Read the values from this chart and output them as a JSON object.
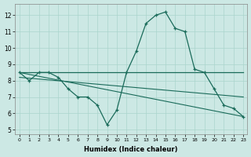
{
  "xlabel": "Humidex (Indice chaleur)",
  "bg_color": "#cce8e4",
  "line_color": "#1a6b5a",
  "grid_color": "#aad4cc",
  "xlim_min": -0.5,
  "xlim_max": 23.4,
  "ylim_min": 4.7,
  "ylim_max": 12.7,
  "yticks": [
    5,
    6,
    7,
    8,
    9,
    10,
    11,
    12
  ],
  "xticks": [
    0,
    1,
    2,
    3,
    4,
    5,
    6,
    7,
    8,
    9,
    10,
    11,
    12,
    13,
    14,
    15,
    16,
    17,
    18,
    19,
    20,
    21,
    22,
    23
  ],
  "line1_x": [
    0,
    1,
    2,
    3,
    4,
    5,
    6,
    7,
    8,
    9,
    10,
    11,
    12,
    13,
    14,
    15,
    16,
    17,
    18,
    19,
    20,
    21,
    22,
    23
  ],
  "line1_y": [
    8.5,
    8.0,
    8.5,
    8.5,
    8.2,
    7.5,
    7.0,
    7.0,
    6.5,
    5.3,
    6.2,
    8.5,
    9.8,
    11.5,
    12.0,
    12.2,
    11.2,
    11.0,
    8.7,
    8.5,
    7.5,
    6.5,
    6.3,
    5.8
  ],
  "line2_x": [
    0,
    1,
    2,
    3,
    4,
    5,
    6,
    7,
    8,
    9,
    10,
    11,
    12,
    13,
    14,
    15,
    16,
    17,
    18,
    19,
    20,
    21,
    22,
    23
  ],
  "line2_y": [
    8.5,
    8.5,
    8.5,
    8.5,
    8.5,
    8.5,
    8.5,
    8.5,
    8.5,
    8.5,
    8.5,
    8.5,
    8.5,
    8.5,
    8.5,
    8.5,
    8.5,
    8.5,
    8.5,
    8.5,
    8.5,
    8.5,
    8.5,
    8.5
  ],
  "line3_x": [
    0,
    23
  ],
  "line3_y": [
    8.5,
    5.8
  ],
  "line4_x": [
    0,
    23
  ],
  "line4_y": [
    8.2,
    7.0
  ]
}
